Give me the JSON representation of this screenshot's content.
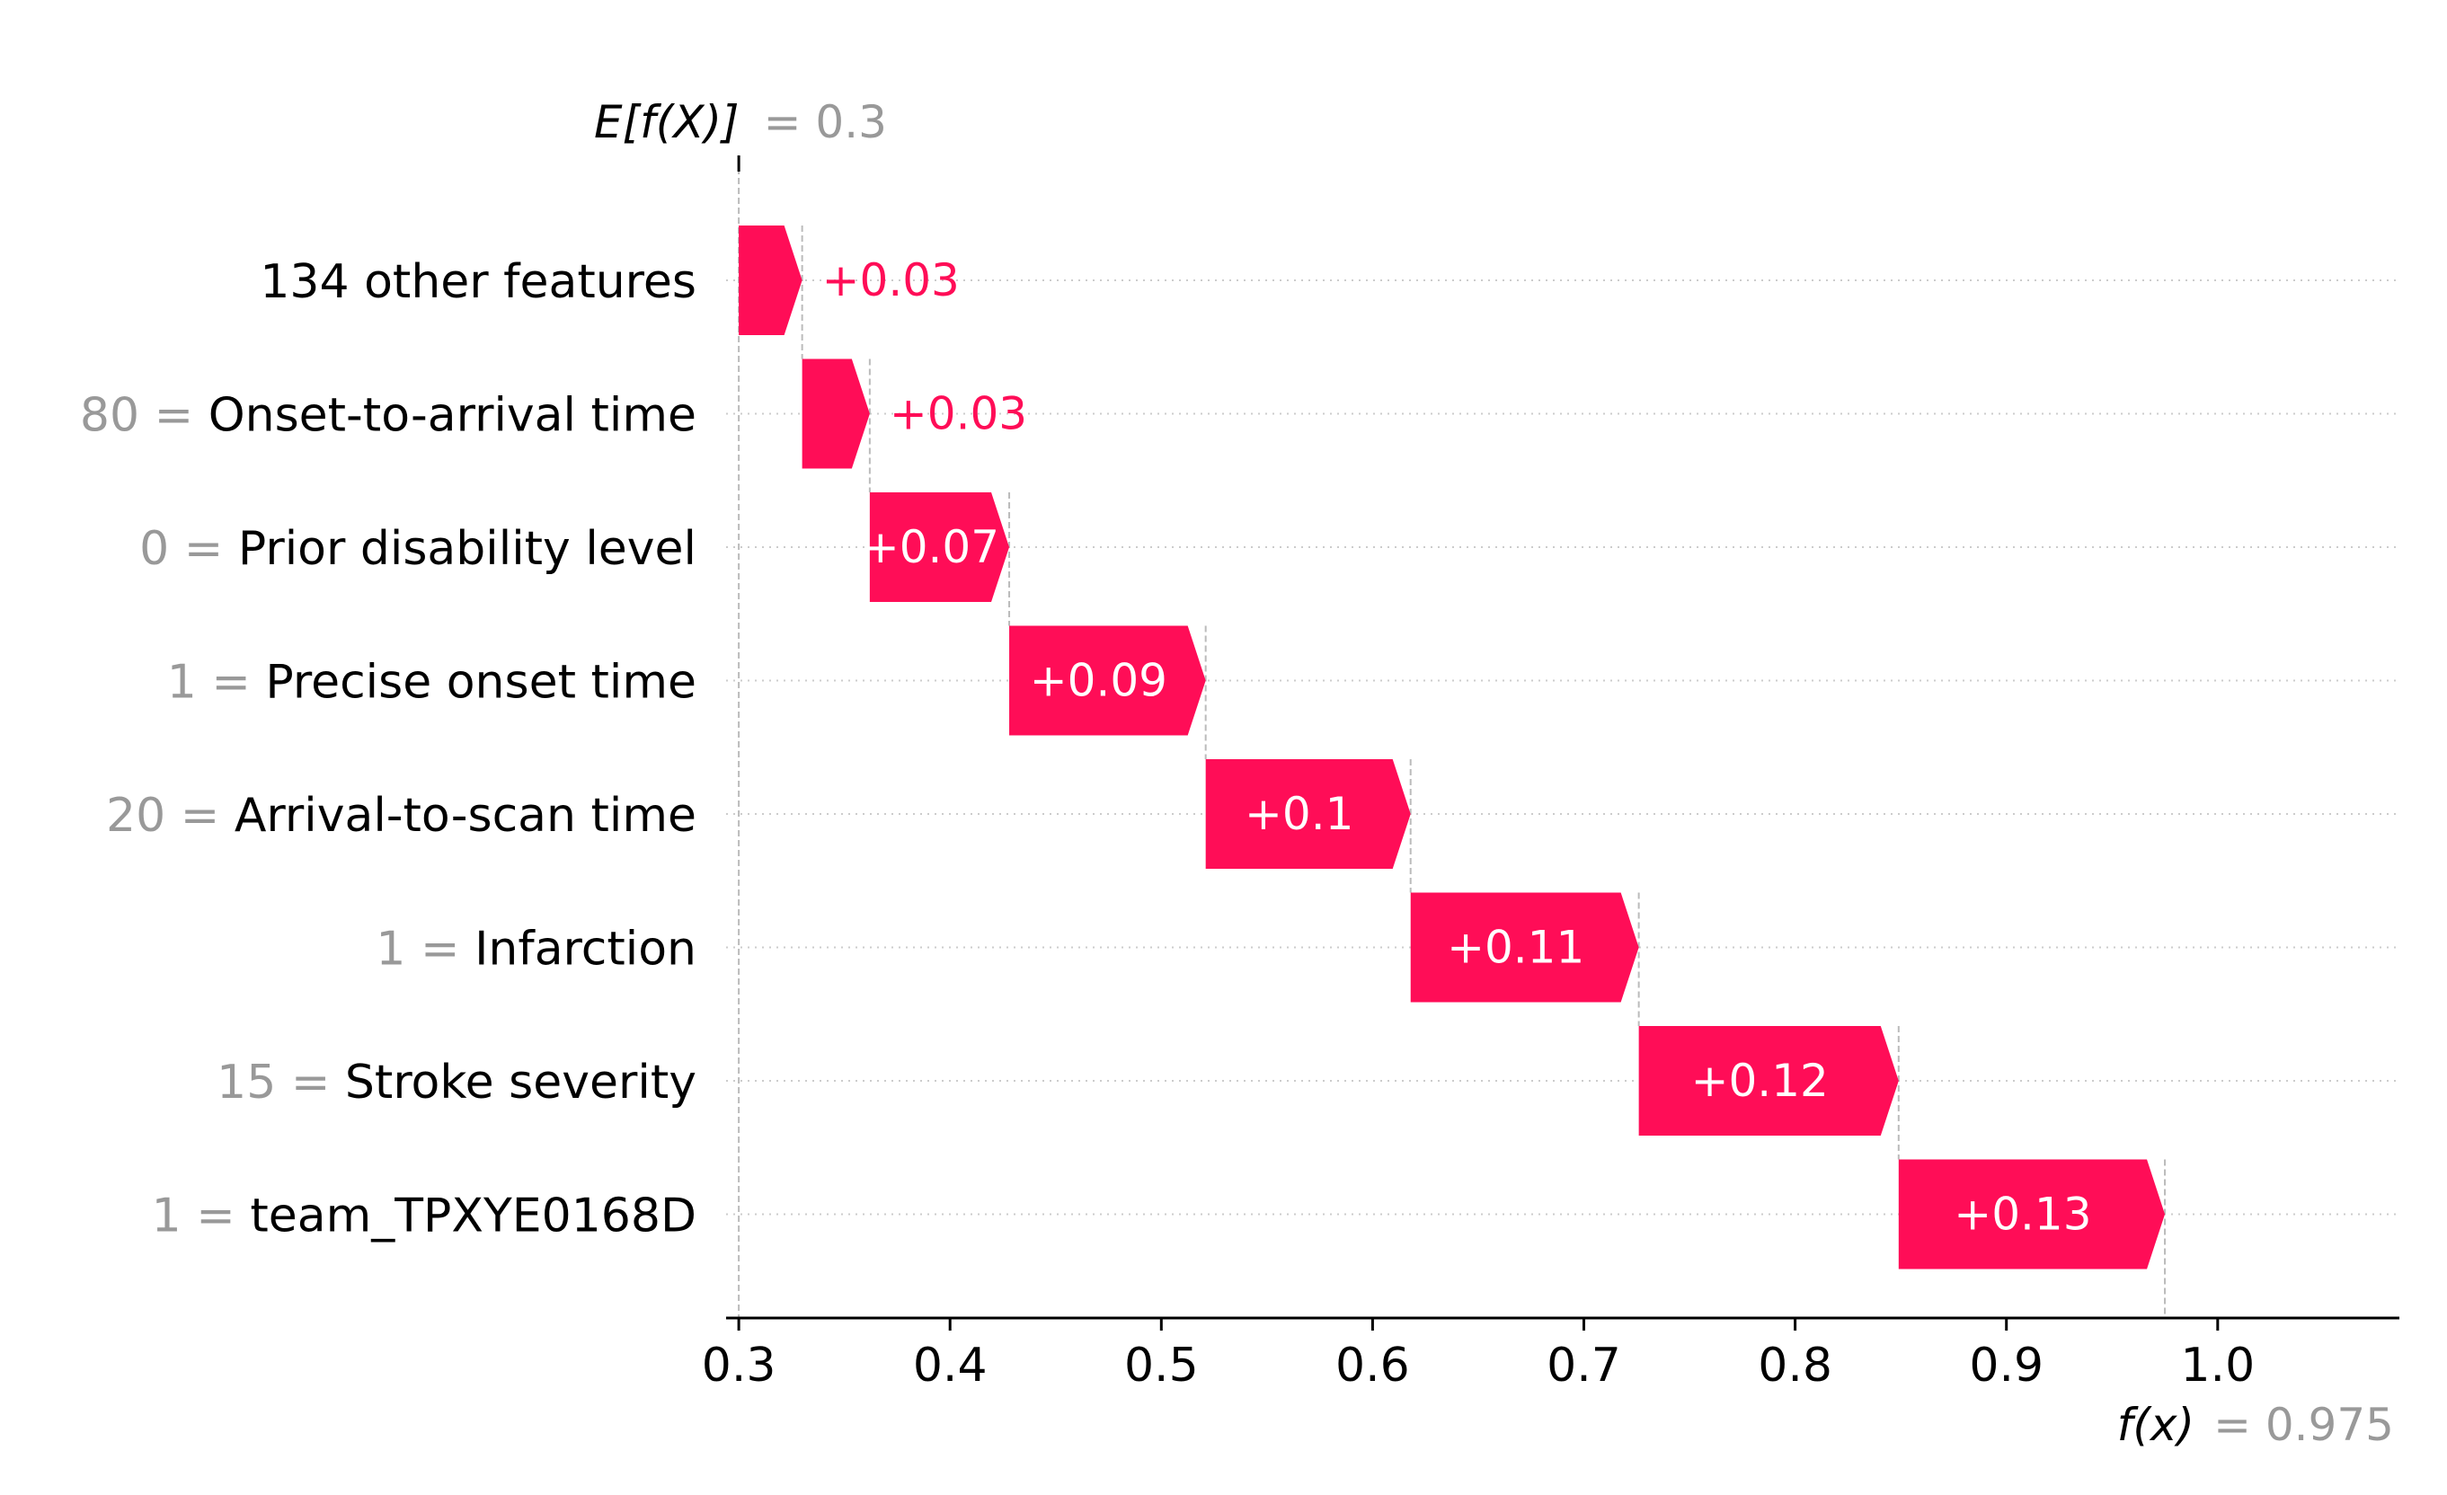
{
  "chart_data": {
    "type": "waterfall",
    "base_value": {
      "label_math": "E[f(X)]",
      "label_value": "= 0.3",
      "value": 0.3
    },
    "final_value": {
      "label_math": "f(x)",
      "label_value": "= 0.975",
      "value": 0.975
    },
    "features": [
      {
        "value_text": "",
        "name": "134 other features",
        "contribution": 0.03,
        "label": "+0.03"
      },
      {
        "value_text": "80 =",
        "name": "Onset-to-arrival time",
        "contribution": 0.032,
        "label": "+0.03"
      },
      {
        "value_text": "0 =",
        "name": "Prior disability level",
        "contribution": 0.066,
        "label": "+0.07"
      },
      {
        "value_text": "1 =",
        "name": "Precise onset time",
        "contribution": 0.093,
        "label": "+0.09"
      },
      {
        "value_text": "20 =",
        "name": "Arrival-to-scan time",
        "contribution": 0.097,
        "label": "+0.1"
      },
      {
        "value_text": "1 =",
        "name": "Infarction",
        "contribution": 0.108,
        "label": "+0.11"
      },
      {
        "value_text": "15 =",
        "name": "Stroke severity",
        "contribution": 0.123,
        "label": "+0.12"
      },
      {
        "value_text": "1 =",
        "name": "team_TPXYE0168D",
        "contribution": 0.126,
        "label": "+0.13"
      }
    ],
    "xaxis": {
      "ticks": [
        0.3,
        0.4,
        0.5,
        0.6,
        0.7,
        0.8,
        0.9,
        1.0
      ],
      "tick_labels": [
        "0.3",
        "0.4",
        "0.5",
        "0.6",
        "0.7",
        "0.8",
        "0.9",
        "1.0"
      ],
      "xlim": [
        0.294,
        1.086
      ]
    },
    "colors": {
      "positive": "#ff0d57",
      "feature_value": "#999999",
      "guide_line": "#bbbbbb",
      "row_grid": "#cccccc"
    },
    "grid": true
  }
}
